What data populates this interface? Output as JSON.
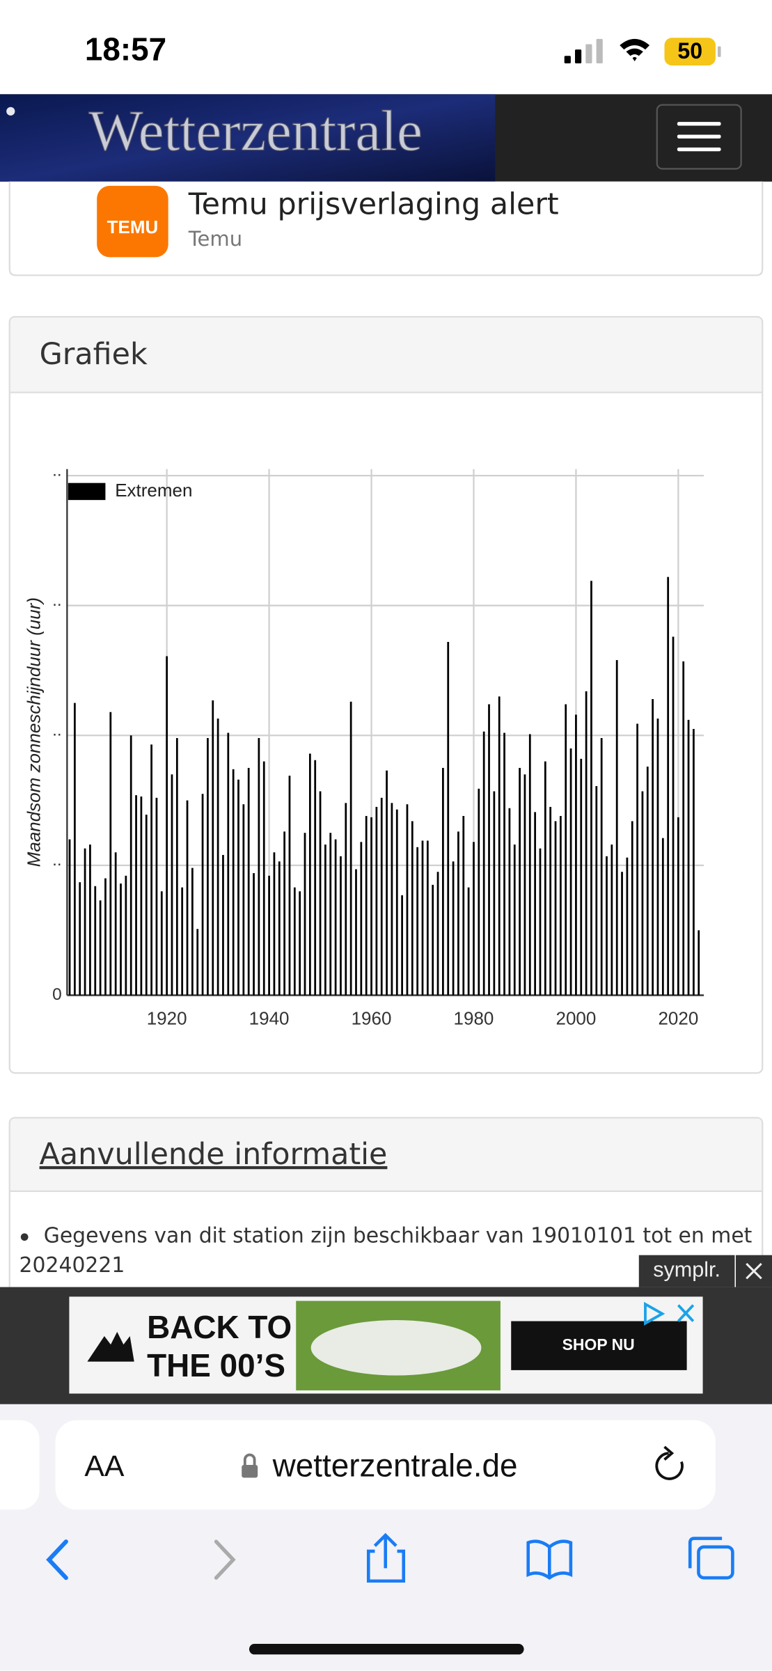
{
  "status_bar": {
    "time": "18:57",
    "battery": "50"
  },
  "header": {
    "logo": "Wetterzentrale"
  },
  "notification": {
    "icon_label": "TEMU",
    "title": "Temu prijsverlaging alert",
    "source": "Temu"
  },
  "chart_panel": {
    "title": "Grafiek"
  },
  "chart_data": {
    "type": "bar",
    "ylabel": "Maandsom zonneschijnduur (uur)",
    "series": [
      {
        "name": "Extremen",
        "color": "#000000",
        "values": [
          120,
          225,
          87,
          113,
          116,
          84,
          73,
          90,
          218,
          110,
          86,
          92,
          200,
          154,
          153,
          139,
          193,
          152,
          80,
          261,
          170,
          198,
          83,
          150,
          98,
          51,
          155,
          198,
          227,
          213,
          108,
          202,
          174,
          166,
          147,
          175,
          94,
          198,
          180,
          92,
          110,
          103,
          126,
          169,
          83,
          80,
          125,
          186,
          181,
          157,
          116,
          125,
          120,
          107,
          148,
          226,
          97,
          118,
          138,
          137,
          145,
          152,
          173,
          148,
          143,
          77,
          147,
          134,
          114,
          119,
          119,
          85,
          95,
          175,
          272,
          103,
          126,
          138,
          83,
          118,
          159,
          203,
          224,
          157,
          230,
          202,
          144,
          116,
          175,
          170,
          201,
          141,
          113,
          180,
          145,
          134,
          138,
          224,
          190,
          216,
          182,
          234,
          319,
          161,
          198,
          107,
          116,
          258,
          95,
          106,
          134,
          209,
          157,
          176,
          228,
          213,
          121,
          322,
          276,
          137,
          257,
          212,
          205,
          50
        ]
      }
    ],
    "x": [
      1901,
      1902,
      1903,
      1904,
      1905,
      1906,
      1907,
      1908,
      1909,
      1910,
      1911,
      1912,
      1913,
      1914,
      1915,
      1916,
      1917,
      1918,
      1919,
      1920,
      1921,
      1922,
      1923,
      1924,
      1925,
      1926,
      1927,
      1928,
      1929,
      1930,
      1931,
      1932,
      1933,
      1934,
      1935,
      1936,
      1937,
      1938,
      1939,
      1940,
      1941,
      1942,
      1943,
      1944,
      1945,
      1946,
      1947,
      1948,
      1949,
      1950,
      1951,
      1952,
      1953,
      1954,
      1955,
      1956,
      1957,
      1958,
      1959,
      1960,
      1961,
      1962,
      1963,
      1964,
      1965,
      1966,
      1967,
      1968,
      1969,
      1970,
      1971,
      1972,
      1973,
      1974,
      1975,
      1976,
      1977,
      1978,
      1979,
      1980,
      1981,
      1982,
      1983,
      1984,
      1985,
      1986,
      1987,
      1988,
      1989,
      1990,
      1991,
      1992,
      1993,
      1994,
      1995,
      1996,
      1997,
      1998,
      1999,
      2000,
      2001,
      2002,
      2003,
      2004,
      2005,
      2006,
      2007,
      2008,
      2009,
      2010,
      2011,
      2012,
      2013,
      2014,
      2015,
      2016,
      2017,
      2018,
      2019,
      2020,
      2021,
      2022,
      2023,
      2024
    ],
    "xlim": [
      1900.5,
      2025
    ],
    "xticks": [
      1920,
      1940,
      1960,
      1980,
      2000,
      2020
    ],
    "ylim": [
      0,
      405
    ],
    "yticks": [
      0,
      {
        "value": 100,
        "label": ".."
      },
      {
        "value": 200,
        "label": ".."
      },
      {
        "value": 300,
        "label": ".."
      },
      {
        "value": 400,
        "label": ".."
      }
    ],
    "grid": true,
    "legend": "upper left"
  },
  "info_panel": {
    "title": "Aanvullende informatie",
    "items": [
      "Gegevens van dit station zijn beschikbaar van 19010101 tot en met 20240221"
    ]
  },
  "ad": {
    "badge": "symplr.",
    "headline_1": "BACK TO",
    "headline_2": "THE 00’S",
    "button": "SHOP NU"
  },
  "browser": {
    "text_size": "AA",
    "url": "wetterzentrale.de"
  }
}
